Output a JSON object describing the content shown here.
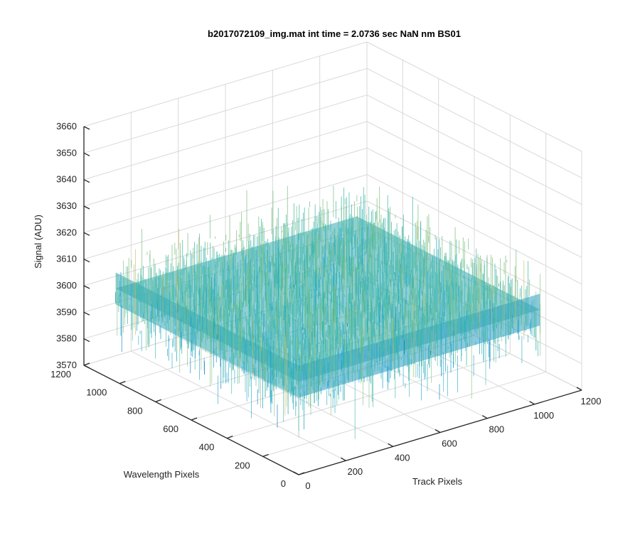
{
  "chart_data": {
    "type": "surface",
    "title": "b2017072109_img.mat int time = 2.0736 sec  NaN nm BS01",
    "xlabel": "Track Pixels",
    "ylabel": "Wavelength Pixels",
    "zlabel": "Signal (ADU)",
    "xlim": [
      0,
      1200
    ],
    "ylim": [
      0,
      1200
    ],
    "zlim": [
      3570,
      3660
    ],
    "xticks": [
      "0",
      "200",
      "400",
      "600",
      "800",
      "1000",
      "1200"
    ],
    "yticks": [
      "0",
      "200",
      "400",
      "600",
      "800",
      "1000",
      "1200"
    ],
    "zticks": [
      "3570",
      "3580",
      "3590",
      "3600",
      "3610",
      "3620",
      "3630",
      "3640",
      "3650",
      "3660"
    ],
    "data_extent": {
      "x": [
        1,
        1024
      ],
      "y": [
        1,
        1024
      ]
    },
    "mean_signal": 3605,
    "noise_std": 8,
    "colormap": [
      "#0072bd",
      "#1aa3c6",
      "#3fb6a8",
      "#7dbf80",
      "#c2b95a"
    ],
    "grid": true
  }
}
